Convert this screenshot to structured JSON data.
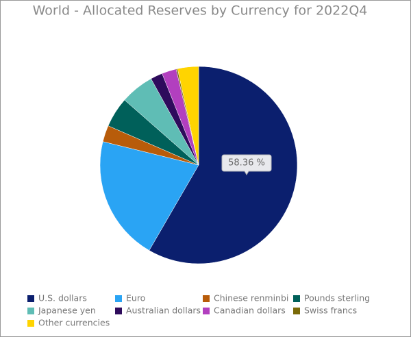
{
  "chart_data": {
    "type": "pie",
    "title": "World - Allocated Reserves by Currency for 2022Q4",
    "categories": [
      "U.S. dollars",
      "Euro",
      "Chinese renminbi",
      "Pounds sterling",
      "Japanese yen",
      "Australian dollars",
      "Canadian dollars",
      "Swiss francs",
      "Other currencies"
    ],
    "values": [
      58.36,
      20.47,
      2.69,
      4.95,
      5.51,
      1.97,
      2.38,
      0.23,
      3.44
    ],
    "value_labels": [
      "58.36 %",
      null,
      null,
      null,
      null,
      null,
      null,
      null,
      null
    ],
    "colors": [
      "#0b1f6e",
      "#2aa4f4",
      "#b85c0a",
      "#00605a",
      "#5fbdb5",
      "#2e0b5c",
      "#b23fbf",
      "#7a6a08",
      "#ffd400"
    ],
    "legend": "bottom"
  }
}
